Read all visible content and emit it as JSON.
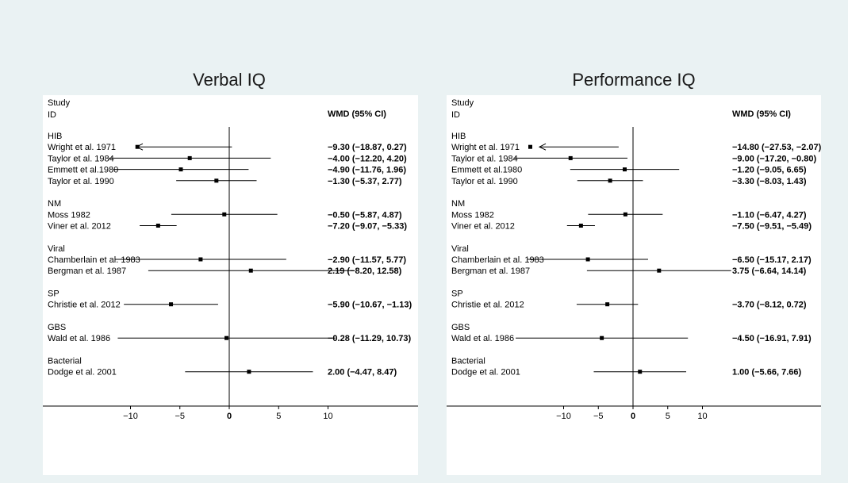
{
  "page": {
    "background": "#eaf2f3",
    "plot_background": "#ffffff"
  },
  "chart_data": [
    {
      "type": "forest",
      "title": "Verbal IQ",
      "header": {
        "study_line1": "Study",
        "study_line2": "ID",
        "effect": "WMD (95% CI)"
      },
      "xticks": [
        -10,
        -5,
        0,
        5,
        10
      ],
      "xlim": [
        -20,
        13.5
      ],
      "groups": [
        {
          "name": "HIB",
          "studies": [
            {
              "label": "Wright et al. 1971",
              "est": -9.3,
              "lo": -18.87,
              "hi": 0.27,
              "text": "−9.30 (−18.87, 0.27)",
              "arrow": true
            },
            {
              "label": "Taylor et al. 1984",
              "est": -4.0,
              "lo": -12.2,
              "hi": 4.2,
              "text": "−4.00 (−12.20, 4.20)"
            },
            {
              "label": "Emmett et al.1980",
              "est": -4.9,
              "lo": -11.76,
              "hi": 1.96,
              "text": "−4.90 (−11.76, 1.96)"
            },
            {
              "label": "Taylor et al. 1990",
              "est": -1.3,
              "lo": -5.37,
              "hi": 2.77,
              "text": "−1.30 (−5.37, 2.77)"
            }
          ]
        },
        {
          "name": "NM",
          "studies": [
            {
              "label": "Moss 1982",
              "est": -0.5,
              "lo": -5.87,
              "hi": 4.87,
              "text": "−0.50 (−5.87, 4.87)"
            },
            {
              "label": "Viner et al. 2012",
              "est": -7.2,
              "lo": -9.07,
              "hi": -5.33,
              "text": "−7.20 (−9.07, −5.33)"
            }
          ]
        },
        {
          "name": "Viral",
          "studies": [
            {
              "label": "Chamberlain et al. 1983",
              "est": -2.9,
              "lo": -11.57,
              "hi": 5.77,
              "text": "−2.90 (−11.57, 5.77)"
            },
            {
              "label": "Bergman et al. 1987",
              "est": 2.19,
              "lo": -8.2,
              "hi": 12.58,
              "text": "2.19 (−8.20, 12.58)"
            }
          ]
        },
        {
          "name": "SP",
          "studies": [
            {
              "label": "Christie et al. 2012",
              "est": -5.9,
              "lo": -10.67,
              "hi": -1.13,
              "text": "−5.90 (−10.67, −1.13)"
            }
          ]
        },
        {
          "name": "GBS",
          "studies": [
            {
              "label": "Wald et al. 1986",
              "est": -0.28,
              "lo": -11.29,
              "hi": 10.73,
              "text": "−0.28 (−11.29, 10.73)"
            }
          ]
        },
        {
          "name": "Bacterial",
          "studies": [
            {
              "label": "Dodge et al. 2001",
              "est": 2.0,
              "lo": -4.47,
              "hi": 8.47,
              "text": "2.00 (−4.47, 8.47)"
            }
          ]
        }
      ]
    },
    {
      "type": "forest",
      "title": "Performance IQ",
      "header": {
        "study_line1": "Study",
        "study_line2": "ID",
        "effect": "WMD (95% CI)"
      },
      "xticks": [
        -10,
        -5,
        0,
        5,
        10
      ],
      "xlim": [
        -28.5,
        19
      ],
      "groups": [
        {
          "name": "HIB",
          "studies": [
            {
              "label": "Wright et al. 1971",
              "est": -14.8,
              "lo": -27.53,
              "hi": -2.07,
              "text": "−14.80 (−27.53, −2.07)",
              "arrow": true
            },
            {
              "label": "Taylor et al. 1984",
              "est": -9.0,
              "lo": -17.2,
              "hi": -0.8,
              "text": "−9.00 (−17.20, −0.80)"
            },
            {
              "label": "Emmett et al.1980",
              "est": -1.2,
              "lo": -9.05,
              "hi": 6.65,
              "text": "−1.20 (−9.05, 6.65)"
            },
            {
              "label": "Taylor et al. 1990",
              "est": -3.3,
              "lo": -8.03,
              "hi": 1.43,
              "text": "−3.30 (−8.03, 1.43)"
            }
          ]
        },
        {
          "name": "NM",
          "studies": [
            {
              "label": "Moss 1982",
              "est": -1.1,
              "lo": -6.47,
              "hi": 4.27,
              "text": "−1.10 (−6.47, 4.27)"
            },
            {
              "label": "Viner et al. 2012",
              "est": -7.5,
              "lo": -9.51,
              "hi": -5.49,
              "text": "−7.50 (−9.51, −5.49)"
            }
          ]
        },
        {
          "name": "Viral",
          "studies": [
            {
              "label": "Chamberlain et al. 1983",
              "est": -6.5,
              "lo": -15.17,
              "hi": 2.17,
              "text": "−6.50 (−15.17, 2.17)"
            },
            {
              "label": "Bergman et al. 1987",
              "est": 3.75,
              "lo": -6.64,
              "hi": 14.14,
              "text": "3.75 (−6.64, 14.14)"
            }
          ]
        },
        {
          "name": "SP",
          "studies": [
            {
              "label": "Christie et al. 2012",
              "est": -3.7,
              "lo": -8.12,
              "hi": 0.72,
              "text": "−3.70 (−8.12, 0.72)"
            }
          ]
        },
        {
          "name": "GBS",
          "studies": [
            {
              "label": "Wald et al. 1986",
              "est": -4.5,
              "lo": -16.91,
              "hi": 7.91,
              "text": "−4.50 (−16.91, 7.91)"
            }
          ]
        },
        {
          "name": "Bacterial",
          "studies": [
            {
              "label": "Dodge et al. 2001",
              "est": 1.0,
              "lo": -5.66,
              "hi": 7.66,
              "text": "1.00 (−5.66, 7.66)"
            }
          ]
        }
      ]
    }
  ]
}
